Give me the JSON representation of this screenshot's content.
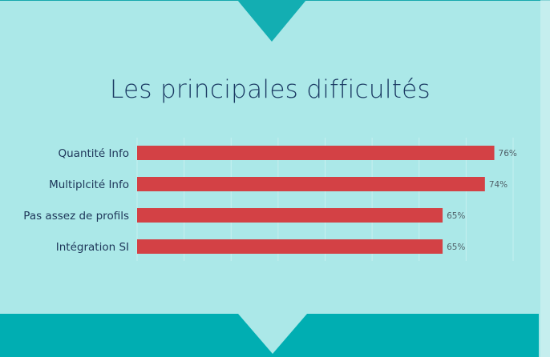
{
  "colors": {
    "background": "#abe8e8",
    "accent": "#00aeb2",
    "bar": "#d34145",
    "title": "#1b3a63"
  },
  "chart_data": {
    "type": "bar",
    "orientation": "horizontal",
    "title": "Les principales difficultés",
    "categories": [
      "Quantité Info",
      "Multiplcité Info",
      "Pas assez de profils",
      "Intégration SI"
    ],
    "values": [
      76,
      74,
      65,
      65
    ],
    "value_labels": [
      "76%",
      "74%",
      "65%",
      "65%"
    ],
    "xlim": [
      0,
      80
    ],
    "grid": true
  }
}
